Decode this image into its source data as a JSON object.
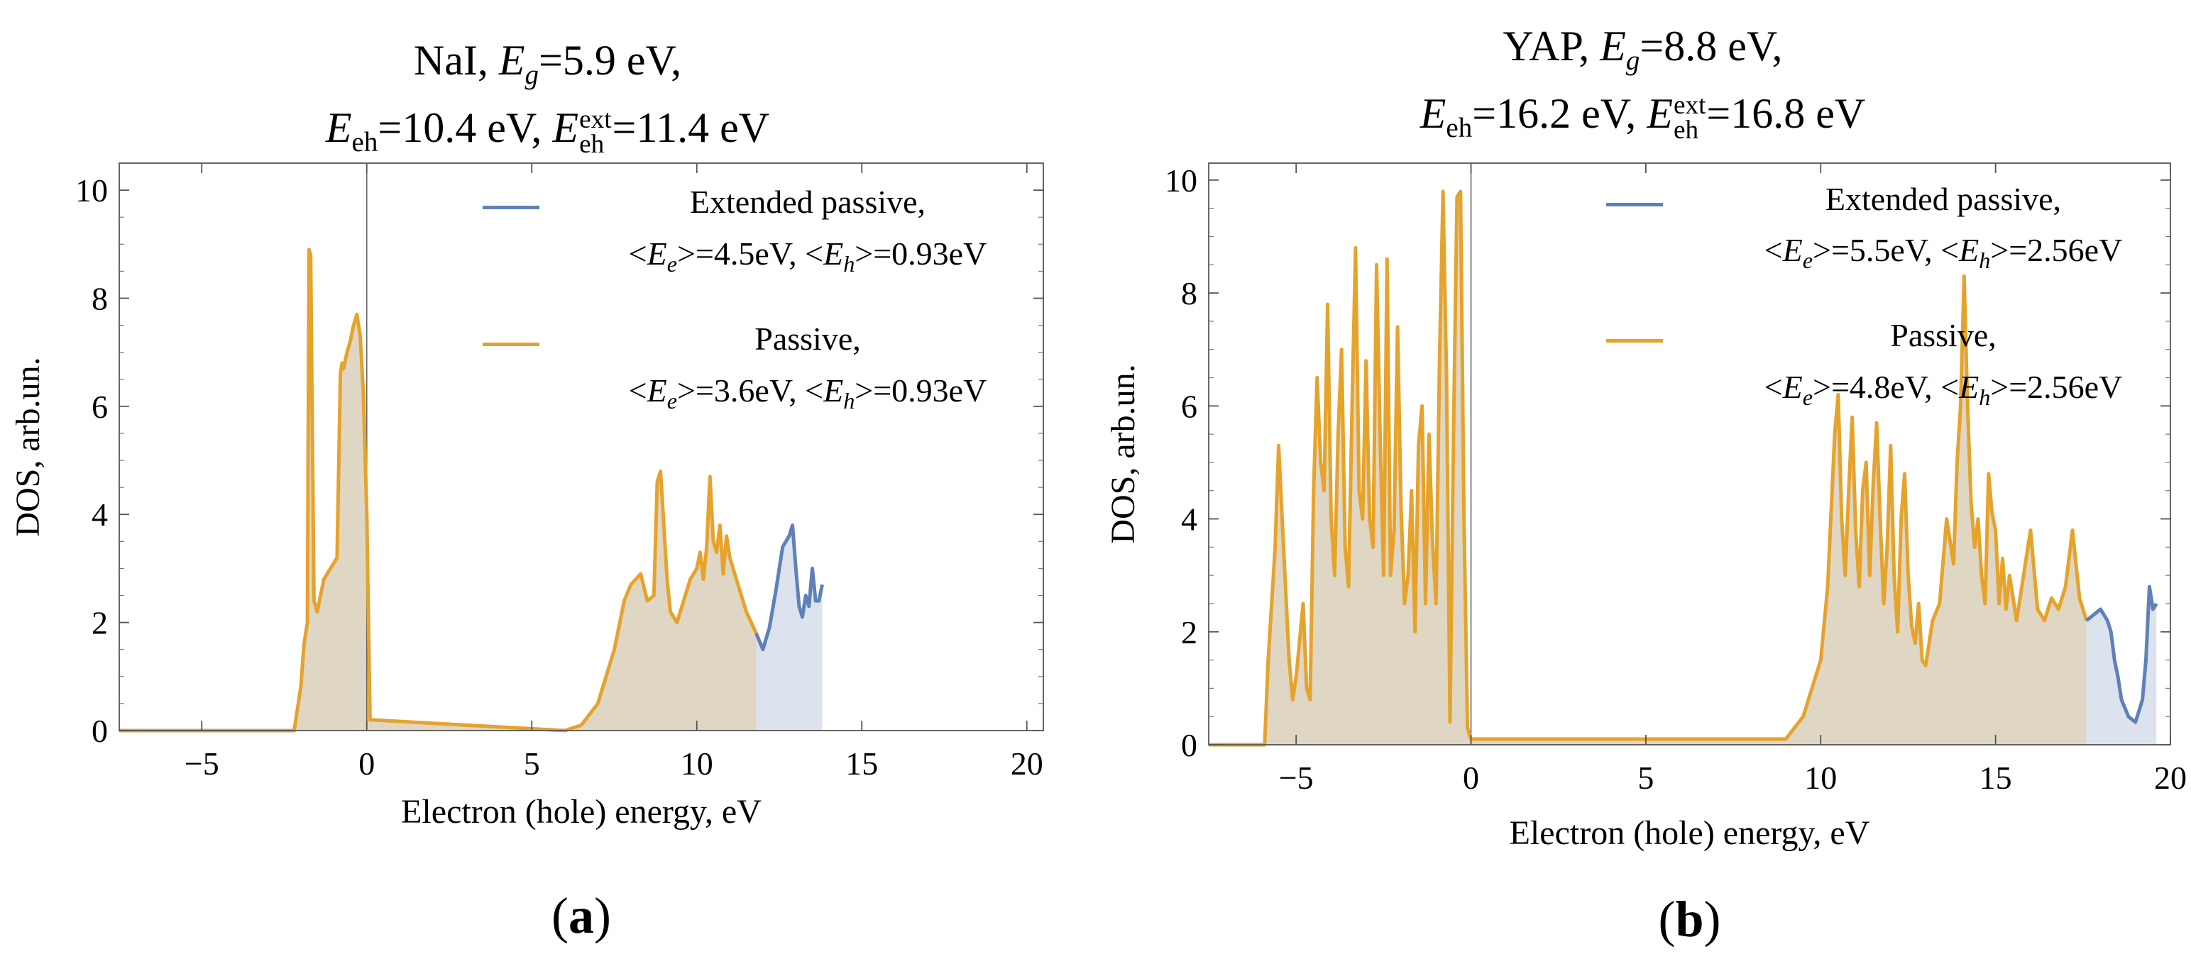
{
  "colors": {
    "passive": "#e6a32c",
    "extended": "#5e81b8",
    "passive_fill": "#dfd6c4",
    "extended_fill": "#dce3ef"
  },
  "charts": [
    {
      "id": "a",
      "panel_label": "a",
      "title": {
        "line1_prefix": "NaI, ",
        "eg_value": "=5.9 eV,",
        "eeh_value": "=10.4 eV, ",
        "eext_value": "=11.4 eV"
      },
      "legend": {
        "extended_label": "Extended passive,",
        "extended_ee": "=4.5eV, <",
        "extended_eh": ">=0.93eV",
        "passive_label": "Passive,",
        "passive_ee": "=3.6eV, <",
        "passive_eh": ">=0.93eV"
      },
      "chart_data": {
        "type": "area",
        "xlabel": "Electron (hole) energy, eV",
        "ylabel": "DOS, arb.un.",
        "xlim": [
          -7.5,
          20.5
        ],
        "ylim": [
          0,
          10.5
        ],
        "xticks": [
          -5,
          0,
          5,
          10,
          15,
          20
        ],
        "yticks": [
          0,
          2,
          4,
          6,
          8,
          10
        ],
        "series": [
          {
            "name": "Passive",
            "x": [
              -7.5,
              -2.2,
              -2.0,
              -1.9,
              -1.8,
              -1.75,
              -1.7,
              -1.6,
              -1.5,
              -1.3,
              -1.1,
              -0.9,
              -0.8,
              -0.75,
              -0.7,
              -0.6,
              -0.5,
              -0.4,
              -0.3,
              -0.2,
              -0.1,
              0.0,
              0.1,
              6.0,
              6.5,
              7.0,
              7.5,
              7.8,
              8.0,
              8.3,
              8.5,
              8.7,
              8.8,
              8.9,
              9.0,
              9.1,
              9.2,
              9.4,
              9.6,
              9.8,
              10.0,
              10.1,
              10.2,
              10.3,
              10.4,
              10.5,
              10.6,
              10.7,
              10.8,
              10.9,
              11.0,
              11.2,
              11.5,
              11.8
            ],
            "y": [
              0,
              0,
              0.8,
              1.6,
              2.0,
              8.9,
              8.8,
              2.4,
              2.2,
              2.8,
              3.0,
              3.2,
              6.6,
              6.8,
              6.7,
              7.0,
              7.2,
              7.5,
              7.7,
              7.3,
              6.2,
              4.0,
              0.2,
              0,
              0.1,
              0.5,
              1.5,
              2.4,
              2.7,
              2.9,
              2.4,
              2.5,
              4.6,
              4.8,
              3.8,
              2.8,
              2.2,
              2.0,
              2.4,
              2.8,
              3.0,
              3.3,
              2.8,
              3.4,
              4.7,
              3.5,
              3.3,
              3.8,
              2.9,
              3.6,
              3.2,
              2.8,
              2.2,
              1.8
            ]
          },
          {
            "name": "Extended passive",
            "x": [
              11.8,
              12.0,
              12.2,
              12.4,
              12.6,
              12.8,
              12.9,
              13.0,
              13.1,
              13.2,
              13.3,
              13.4,
              13.5,
              13.6,
              13.7,
              13.8
            ],
            "y": [
              1.8,
              1.5,
              1.9,
              2.6,
              3.4,
              3.6,
              3.8,
              3.0,
              2.3,
              2.1,
              2.5,
              2.3,
              3.0,
              2.4,
              2.4,
              2.7
            ]
          }
        ]
      }
    },
    {
      "id": "b",
      "panel_label": "b",
      "title": {
        "line1_prefix": "YAP, ",
        "eg_value": "=8.8 eV,",
        "eeh_value": "=16.2 eV, ",
        "eext_value": "=16.8 eV"
      },
      "legend": {
        "extended_label": "Extended passive,",
        "extended_ee": "=5.5eV, <",
        "extended_eh": ">=2.56eV",
        "passive_label": "Passive,",
        "passive_ee": "=4.8eV, <",
        "passive_eh": ">=2.56eV"
      },
      "chart_data": {
        "type": "area",
        "xlabel": "Electron (hole) energy, eV",
        "ylabel": "DOS, arb.un.",
        "xlim": [
          -7.5,
          20
        ],
        "ylim": [
          0,
          10.3
        ],
        "xticks": [
          -5,
          0,
          5,
          10,
          15,
          20
        ],
        "yticks": [
          0,
          2,
          4,
          6,
          8,
          10
        ],
        "series": [
          {
            "name": "Passive",
            "x": [
              -7.5,
              -5.9,
              -5.8,
              -5.6,
              -5.5,
              -5.4,
              -5.2,
              -5.1,
              -5.0,
              -4.8,
              -4.7,
              -4.6,
              -4.5,
              -4.4,
              -4.3,
              -4.2,
              -4.1,
              -4.0,
              -3.9,
              -3.8,
              -3.7,
              -3.6,
              -3.5,
              -3.4,
              -3.3,
              -3.2,
              -3.1,
              -3.0,
              -2.9,
              -2.8,
              -2.7,
              -2.6,
              -2.5,
              -2.4,
              -2.3,
              -2.2,
              -2.1,
              -2.0,
              -1.9,
              -1.8,
              -1.7,
              -1.6,
              -1.5,
              -1.4,
              -1.3,
              -1.2,
              -1.1,
              -1.0,
              -0.9,
              -0.8,
              -0.7,
              -0.6,
              -0.5,
              -0.4,
              -0.3,
              -0.2,
              -0.1,
              0.0,
              9.0,
              9.5,
              10.0,
              10.2,
              10.4,
              10.5,
              10.6,
              10.7,
              10.8,
              10.9,
              11.0,
              11.1,
              11.2,
              11.3,
              11.4,
              11.5,
              11.6,
              11.7,
              11.8,
              11.9,
              12.0,
              12.1,
              12.2,
              12.3,
              12.4,
              12.5,
              12.6,
              12.7,
              12.8,
              12.9,
              13.0,
              13.2,
              13.4,
              13.6,
              13.8,
              13.9,
              14.0,
              14.1,
              14.2,
              14.3,
              14.4,
              14.5,
              14.6,
              14.7,
              14.8,
              14.9,
              15.0,
              15.1,
              15.2,
              15.3,
              15.4,
              15.5,
              15.6,
              15.8,
              16.0,
              16.2,
              16.4,
              16.6,
              16.8,
              17.0,
              17.2,
              17.4,
              17.6
            ],
            "y": [
              0,
              0,
              1.5,
              3.5,
              5.3,
              4.0,
              1.5,
              0.8,
              1.2,
              2.5,
              1.0,
              0.8,
              4.5,
              6.5,
              5.0,
              4.5,
              7.8,
              4.0,
              3.0,
              5.5,
              7.0,
              3.5,
              2.8,
              6.0,
              8.8,
              4.5,
              4.0,
              6.8,
              4.0,
              3.5,
              8.5,
              5.5,
              3.0,
              8.6,
              3.0,
              3.8,
              7.4,
              4.2,
              2.5,
              3.0,
              4.5,
              2.0,
              5.3,
              6.0,
              2.5,
              5.5,
              3.6,
              2.5,
              6.8,
              9.8,
              6.5,
              0.4,
              5.5,
              9.7,
              9.8,
              4.0,
              0.3,
              0.1,
              0.1,
              0.5,
              1.5,
              2.8,
              5.5,
              6.2,
              4.0,
              3.0,
              4.5,
              5.8,
              3.8,
              2.8,
              4.5,
              5.0,
              3.0,
              4.6,
              5.7,
              4.0,
              2.5,
              3.5,
              5.3,
              3.0,
              2.0,
              4.0,
              4.8,
              3.0,
              2.1,
              1.8,
              2.5,
              1.5,
              1.4,
              2.2,
              2.5,
              4.0,
              3.2,
              5.0,
              6.0,
              8.3,
              6.0,
              4.3,
              3.5,
              4.0,
              3.0,
              2.5,
              4.8,
              4.1,
              3.8,
              2.5,
              3.3,
              2.4,
              3.0,
              2.6,
              2.2,
              3.0,
              3.8,
              2.4,
              2.2,
              2.6,
              2.4,
              2.8,
              3.8,
              2.6,
              2.2
            ]
          },
          {
            "name": "Extended passive",
            "x": [
              17.6,
              17.8,
              18.0,
              18.2,
              18.3,
              18.4,
              18.5,
              18.6,
              18.8,
              19.0,
              19.1,
              19.2,
              19.3,
              19.4,
              19.5,
              19.6
            ],
            "y": [
              2.2,
              2.3,
              2.4,
              2.2,
              2.0,
              1.5,
              1.2,
              0.8,
              0.5,
              0.4,
              0.6,
              0.8,
              1.5,
              2.8,
              2.4,
              2.5
            ]
          }
        ]
      }
    }
  ]
}
